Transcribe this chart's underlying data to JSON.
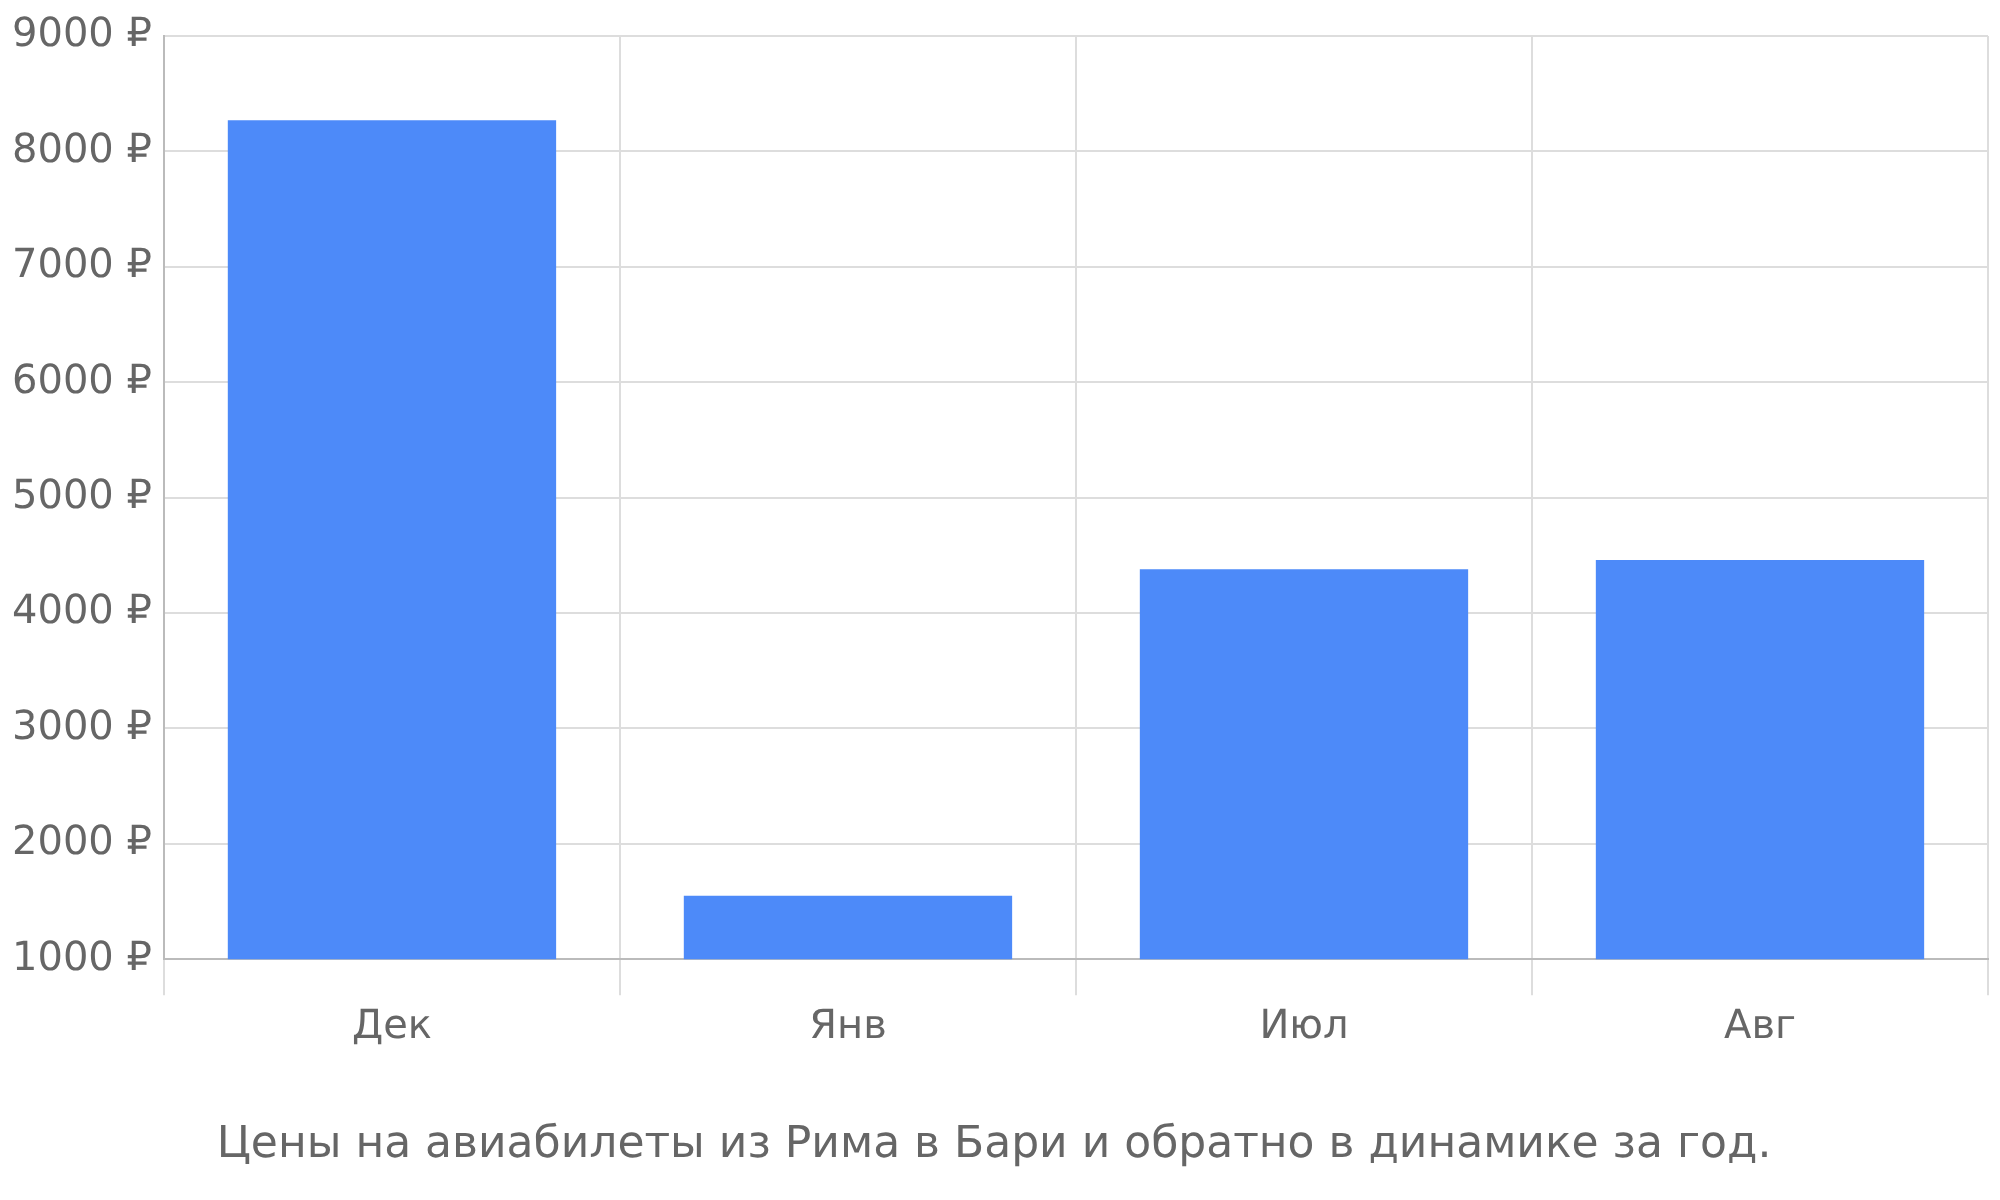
{
  "chart_data": {
    "type": "bar",
    "title": "Цены на авиабилеты из Рима в Бари и обратно в динамике за год.",
    "categories": [
      "Дек",
      "Янв",
      "Июл",
      "Авг"
    ],
    "values": [
      8270,
      1550,
      4380,
      4460
    ],
    "color": "#4d8af9",
    "ylim": [
      1000,
      9000
    ],
    "yticks": [
      {
        "value": 1000,
        "label": "1000 ₽"
      },
      {
        "value": 2000,
        "label": "2000 ₽"
      },
      {
        "value": 3000,
        "label": "3000 ₽"
      },
      {
        "value": 4000,
        "label": "4000 ₽"
      },
      {
        "value": 5000,
        "label": "5000 ₽"
      },
      {
        "value": 6000,
        "label": "6000 ₽"
      },
      {
        "value": 7000,
        "label": "7000 ₽"
      },
      {
        "value": 8000,
        "label": "8000 ₽"
      },
      {
        "value": 9000,
        "label": "9000 ₽"
      }
    ],
    "grid": true,
    "legend": false
  }
}
